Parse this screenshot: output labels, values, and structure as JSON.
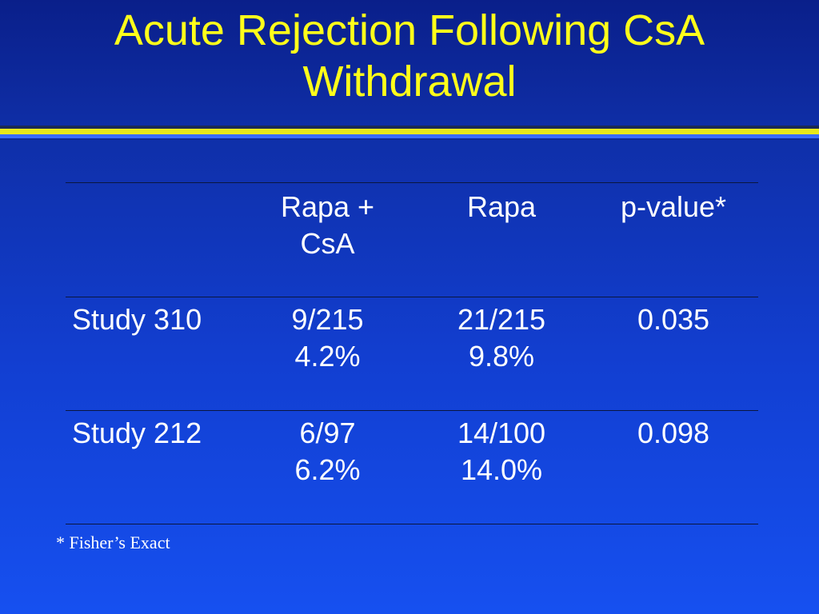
{
  "title": {
    "line1": "Acute Rejection Following CsA",
    "line2": "Withdrawal"
  },
  "table": {
    "headers": [
      "",
      "Rapa +",
      "CsA",
      "Rapa",
      "p-value*"
    ],
    "rows": [
      {
        "label": "Study 310",
        "rapa_csa_count": "9/215",
        "rapa_csa_pct": "4.2%",
        "rapa_count": "21/215",
        "rapa_pct": "9.8%",
        "p_value": "0.035"
      },
      {
        "label": "Study 212",
        "rapa_csa_count": "6/97",
        "rapa_csa_pct": "6.2%",
        "rapa_count": "14/100",
        "rapa_pct": "14.0%",
        "p_value": "0.098"
      }
    ]
  },
  "footnote": "* Fisher’s Exact",
  "colors": {
    "title": "#ffff1a",
    "text": "#ffffff",
    "background_top": "#0a1f8a",
    "background_bottom": "#1650f0",
    "accent_band": "#e8e81a"
  }
}
